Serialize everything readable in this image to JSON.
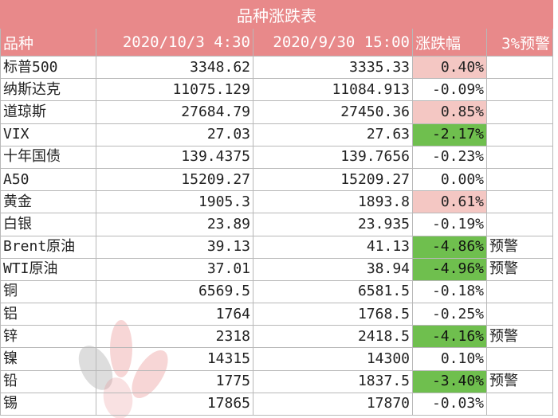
{
  "title": "品种涨跌表",
  "headers": [
    "品种",
    "2020/10/3 4:30",
    "2020/9/30 15:00",
    "涨跌幅",
    "3%预警"
  ],
  "colors": {
    "header_bg": "#e8898a",
    "rise_fill": "#f4c7c3",
    "fall_fill": "#6fbf4e"
  },
  "rows": [
    {
      "name": "标普500",
      "current": "3348.62",
      "previous": "3335.33",
      "change": "0.40%",
      "alert": "",
      "highlight": "up"
    },
    {
      "name": "纳斯达克",
      "current": "11075.129",
      "previous": "11084.913",
      "change": "-0.09%",
      "alert": "",
      "highlight": ""
    },
    {
      "name": "道琼斯",
      "current": "27684.79",
      "previous": "27450.36",
      "change": "0.85%",
      "alert": "",
      "highlight": "up"
    },
    {
      "name": "VIX",
      "current": "27.03",
      "previous": "27.63",
      "change": "-2.17%",
      "alert": "",
      "highlight": "down"
    },
    {
      "name": "十年国债",
      "current": "139.4375",
      "previous": "139.7656",
      "change": "-0.23%",
      "alert": "",
      "highlight": ""
    },
    {
      "name": "A50",
      "current": "15209.27",
      "previous": "15209.27",
      "change": "0.00%",
      "alert": "",
      "highlight": ""
    },
    {
      "name": "黄金",
      "current": "1905.3",
      "previous": "1893.8",
      "change": "0.61%",
      "alert": "",
      "highlight": "up"
    },
    {
      "name": "白银",
      "current": "23.89",
      "previous": "23.935",
      "change": "-0.19%",
      "alert": "",
      "highlight": ""
    },
    {
      "name": "Brent原油",
      "current": "39.13",
      "previous": "41.13",
      "change": "-4.86%",
      "alert": "预警",
      "highlight": "down"
    },
    {
      "name": "WTI原油",
      "current": "37.01",
      "previous": "38.94",
      "change": "-4.96%",
      "alert": "预警",
      "highlight": "down"
    },
    {
      "name": "铜",
      "current": "6569.5",
      "previous": "6581.5",
      "change": "-0.18%",
      "alert": "",
      "highlight": ""
    },
    {
      "name": "铝",
      "current": "1764",
      "previous": "1768.5",
      "change": "-0.25%",
      "alert": "",
      "highlight": ""
    },
    {
      "name": "锌",
      "current": "2318",
      "previous": "2418.5",
      "change": "-4.16%",
      "alert": "预警",
      "highlight": "down"
    },
    {
      "name": "镍",
      "current": "14315",
      "previous": "14300",
      "change": "0.10%",
      "alert": "",
      "highlight": ""
    },
    {
      "name": "铅",
      "current": "1775",
      "previous": "1837.5",
      "change": "-3.40%",
      "alert": "预警",
      "highlight": "down"
    },
    {
      "name": "锡",
      "current": "17865",
      "previous": "17870",
      "change": "-0.03%",
      "alert": "",
      "highlight": ""
    }
  ]
}
